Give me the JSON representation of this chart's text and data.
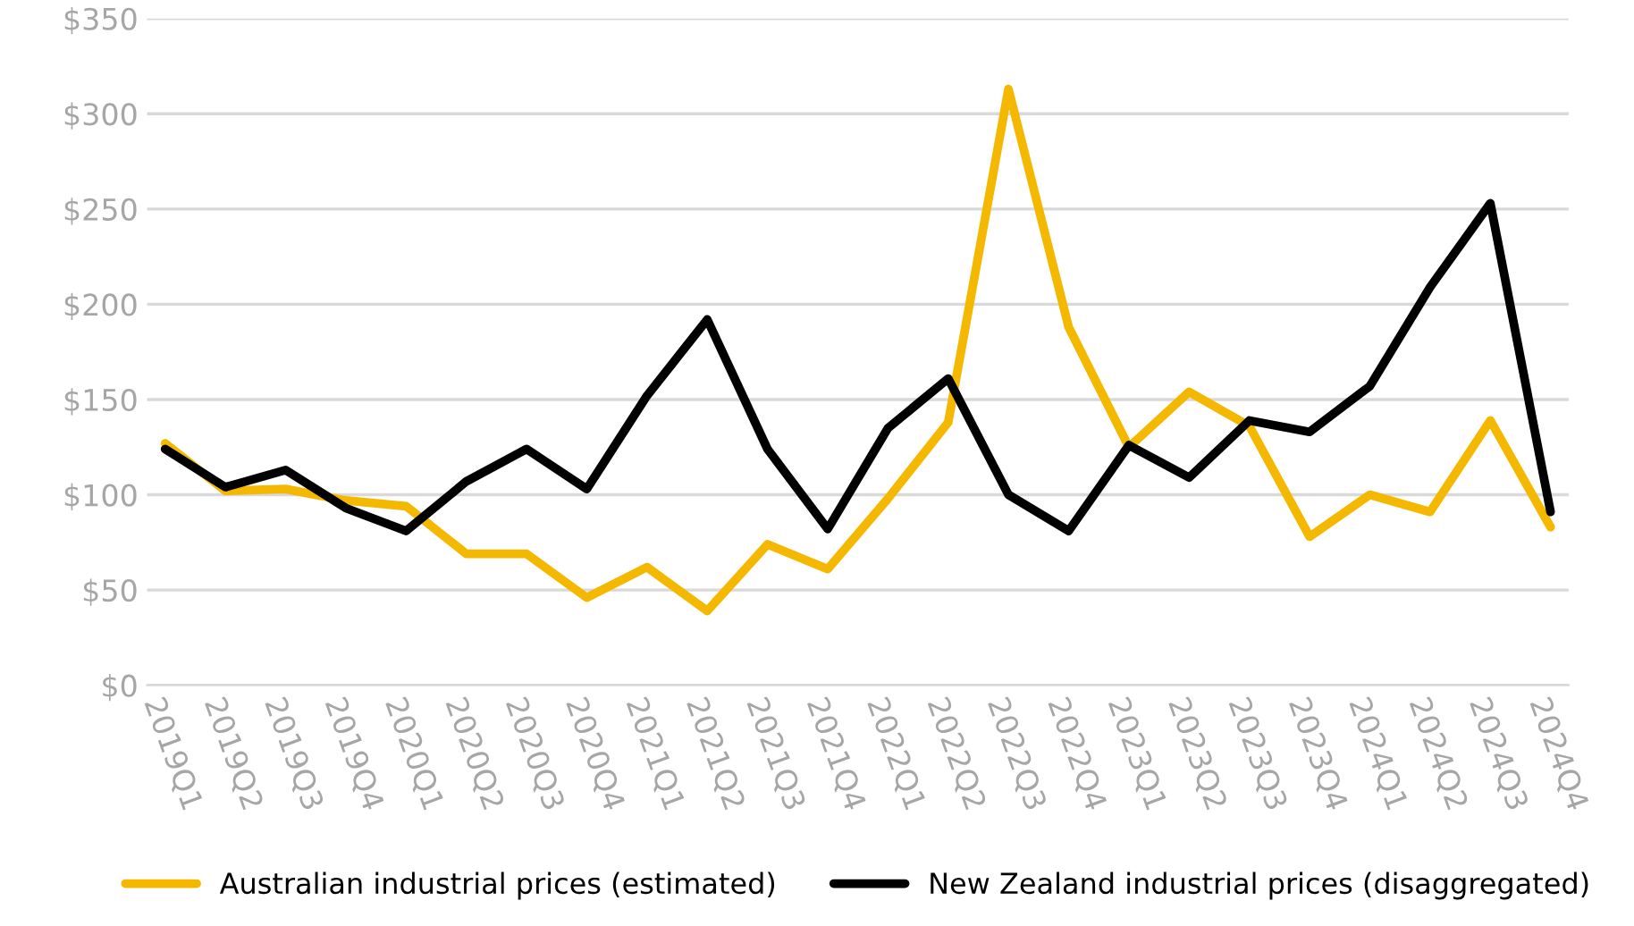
{
  "chart_data": {
    "type": "line",
    "categories": [
      "2019Q1",
      "2019Q2",
      "2019Q3",
      "2019Q4",
      "2020Q1",
      "2020Q2",
      "2020Q3",
      "2020Q4",
      "2021Q1",
      "2021Q2",
      "2021Q3",
      "2021Q4",
      "2022Q1",
      "2022Q2",
      "2022Q3",
      "2022Q4",
      "2023Q1",
      "2023Q2",
      "2023Q3",
      "2023Q4",
      "2024Q1",
      "2024Q2",
      "2024Q3",
      "2024Q4"
    ],
    "series": [
      {
        "name": "Australian industrial prices (estimated)",
        "color": "#f5b800",
        "values": [
          127,
          102,
          103,
          97,
          94,
          69,
          69,
          46,
          62,
          39,
          74,
          61,
          98,
          138,
          313,
          188,
          125,
          154,
          136,
          78,
          100,
          91,
          139,
          83
        ]
      },
      {
        "name": "New Zealand industrial prices (disaggregated)",
        "color": "#000000",
        "values": [
          124,
          104,
          113,
          93,
          81,
          107,
          124,
          103,
          152,
          192,
          124,
          82,
          135,
          161,
          100,
          81,
          126,
          109,
          139,
          133,
          157,
          209,
          253,
          91
        ]
      }
    ],
    "ylim": [
      0,
      350
    ],
    "yticks": [
      {
        "value": 0,
        "label": "$0"
      },
      {
        "value": 50,
        "label": "$50"
      },
      {
        "value": 100,
        "label": "$100"
      },
      {
        "value": 150,
        "label": "$150"
      },
      {
        "value": 200,
        "label": "$200"
      },
      {
        "value": 250,
        "label": "$250"
      },
      {
        "value": 300,
        "label": "$300"
      },
      {
        "value": 350,
        "label": "$350"
      }
    ],
    "grid": "y",
    "legend": "bottom",
    "marker": "none",
    "line_style": "solid"
  }
}
